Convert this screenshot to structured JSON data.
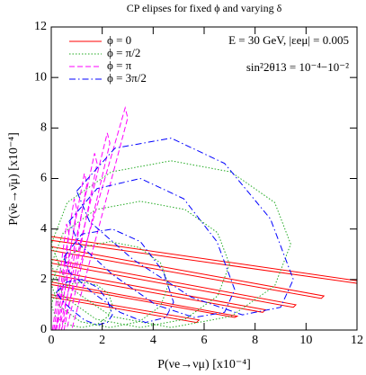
{
  "chart_data": {
    "type": "line",
    "title": "CP elipses for fixed ϕ  and varying δ",
    "x_label": "P(νe→νμ) [x10⁻⁴]",
    "y_label": "P(ν̄e→ν̄μ) [x10⁻⁴]",
    "annotations": [
      "E = 30 GeV, |εeμ| = 0.005",
      "sin²2θ13 = 10⁻⁴−10⁻²"
    ],
    "legend": "top-left",
    "xlim": [
      0,
      12
    ],
    "ylim": [
      0,
      12
    ],
    "xticks": [
      0,
      2,
      4,
      6,
      8,
      10,
      12
    ],
    "yticks": [
      0,
      2,
      4,
      6,
      8,
      10,
      12
    ],
    "series": [
      {
        "name": "ϕ = 0",
        "color": "#ff0000",
        "dash": "solid",
        "x": [
          0,
          12,
          12,
          0,
          0,
          null,
          0,
          10.7,
          10.6,
          0,
          0,
          null,
          0,
          9.6,
          9.5,
          0,
          0,
          null,
          0,
          8.4,
          8.3,
          0,
          0,
          null,
          0,
          7.3,
          7.2,
          0,
          0,
          null,
          0,
          5.8,
          5.7,
          0,
          0
        ],
        "values": [
          3.7,
          1.95,
          1.85,
          3.55,
          3.7,
          null,
          3.3,
          1.35,
          1.25,
          3.15,
          3.3,
          null,
          2.8,
          1.0,
          0.9,
          2.65,
          2.8,
          null,
          2.35,
          0.8,
          0.7,
          2.2,
          2.35,
          null,
          1.9,
          0.55,
          0.5,
          1.8,
          1.9,
          null,
          1.4,
          0.4,
          0.3,
          1.3,
          1.4
        ]
      },
      {
        "name": "ϕ = π/2",
        "color": "#22aa22",
        "dash": "dotted",
        "x": [
          9.4,
          8.77,
          7.05,
          4.7,
          2.35,
          0.63,
          0,
          0.63,
          2.35,
          4.7,
          7.05,
          8.77,
          9.4,
          null,
          7,
          6.53,
          5.25,
          3.5,
          1.75,
          0.47,
          0,
          0.47,
          1.75,
          3.5,
          5.25,
          6.53,
          7,
          null,
          4.6,
          4.29,
          3.45,
          2.3,
          1.15,
          0.31,
          0,
          0.31,
          1.15,
          2.3,
          3.45,
          4.29,
          4.6,
          null,
          2.4,
          2.24,
          1.8,
          1.2,
          0.6,
          0.16,
          0,
          0.16,
          0.6,
          1.2,
          1.8,
          2.24,
          2.4
        ],
        "values": [
          3.4,
          5.05,
          6.26,
          6.7,
          6.26,
          5.05,
          3.4,
          1.75,
          0.54,
          0.1,
          0.54,
          1.75,
          3.4,
          null,
          2.6,
          3.85,
          4.77,
          5.1,
          4.77,
          3.85,
          2.6,
          1.35,
          0.43,
          0.1,
          0.43,
          1.35,
          2.6,
          null,
          1.8,
          2.65,
          3.27,
          3.5,
          3.27,
          2.65,
          1.8,
          0.95,
          0.33,
          0.1,
          0.33,
          0.95,
          1.8,
          null,
          1,
          1.45,
          1.78,
          1.9,
          1.78,
          1.45,
          1,
          0.55,
          0.22,
          0.1,
          0.22,
          0.55,
          1
        ]
      },
      {
        "name": "ϕ = π",
        "color": "#ff00ff",
        "dash": "dashed",
        "x": [
          0.4,
          2.9,
          3.0,
          0.8,
          0.4,
          null,
          0.3,
          2.2,
          2.3,
          0.6,
          0.3,
          null,
          0.2,
          1.7,
          1.8,
          0.5,
          0.2,
          null,
          0.15,
          1.3,
          1.4,
          0.4,
          0.15,
          null,
          0.1,
          0.9,
          1.0,
          0.3,
          0.1,
          null,
          0.05,
          0.6,
          0.7,
          0.2,
          0.05
        ],
        "values": [
          0,
          8.8,
          8.4,
          0,
          0,
          null,
          0,
          7.8,
          7.4,
          0,
          0,
          null,
          0,
          7.0,
          6.6,
          0,
          0,
          null,
          0,
          6.2,
          5.8,
          0,
          0,
          null,
          0,
          5.2,
          4.8,
          0,
          0,
          null,
          0,
          4.2,
          3.8,
          0,
          0
        ]
      },
      {
        "name": "ϕ = 3π/2",
        "color": "#0000ff",
        "dash": "dashdot",
        "x": [
          1.0,
          2.5,
          4.7,
          6.8,
          8.6,
          9.5,
          9.0,
          7.5,
          5.5,
          3.2,
          1.5,
          1.0,
          null,
          0.7,
          1.8,
          3.5,
          5.2,
          6.5,
          7.2,
          6.8,
          5.6,
          4.1,
          2.4,
          1.1,
          0.7,
          null,
          0.5,
          1.2,
          2.4,
          3.5,
          4.4,
          4.8,
          4.5,
          3.7,
          2.7,
          1.6,
          0.7,
          0.5,
          null,
          0.2,
          0.6,
          1.2,
          1.8,
          2.2,
          2.4,
          2.2,
          1.8,
          1.3,
          0.8,
          0.4,
          0.2
        ],
        "values": [
          5.5,
          7.2,
          7.6,
          6.6,
          4.4,
          2.0,
          0.9,
          0.6,
          1.3,
          2.8,
          4.3,
          5.5,
          null,
          4.3,
          5.6,
          6.0,
          5.2,
          3.5,
          1.6,
          0.7,
          0.5,
          1.0,
          2.2,
          3.4,
          4.3,
          null,
          2.9,
          3.8,
          4.0,
          3.5,
          2.3,
          1.1,
          0.5,
          0.3,
          0.7,
          1.5,
          2.3,
          2.9,
          null,
          1.5,
          1.9,
          2.0,
          1.7,
          1.2,
          0.6,
          0.3,
          0.2,
          0.4,
          0.8,
          1.2,
          1.5
        ]
      }
    ]
  }
}
